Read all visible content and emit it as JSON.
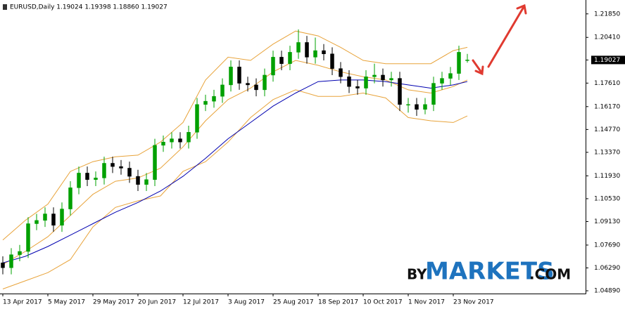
{
  "chart_data": {
    "type": "candlestick",
    "title": "EURUSD,Daily  1.19024 1.19398 1.18860 1.19027",
    "x": [
      0,
      3,
      6,
      9,
      12,
      15,
      18,
      21,
      24,
      27,
      30,
      33,
      36,
      39,
      42,
      45,
      48,
      51,
      54,
      57,
      60,
      63,
      66,
      69,
      72,
      75,
      78,
      81,
      84,
      87,
      90,
      93,
      96,
      99,
      102,
      105,
      108,
      111,
      114,
      117,
      120,
      123,
      126,
      129,
      132,
      135,
      138,
      141,
      144,
      147,
      150,
      153,
      156,
      159,
      162,
      165
    ],
    "open": [
      1.066,
      1.063,
      1.071,
      1.073,
      1.09,
      1.092,
      1.096,
      1.089,
      1.099,
      1.112,
      1.121,
      1.117,
      1.118,
      1.127,
      1.125,
      1.124,
      1.119,
      1.114,
      1.117,
      1.138,
      1.14,
      1.142,
      1.14,
      1.146,
      1.163,
      1.165,
      1.168,
      1.175,
      1.186,
      1.176,
      1.175,
      1.172,
      1.181,
      1.192,
      1.188,
      1.195,
      1.201,
      1.192,
      1.196,
      1.194,
      1.185,
      1.18,
      1.174,
      1.173,
      1.18,
      1.181,
      1.178,
      1.179,
      1.163,
      1.163,
      1.16,
      1.163,
      1.176,
      1.179,
      1.182,
      1.19024
    ],
    "high": [
      1.07,
      1.075,
      1.077,
      1.094,
      1.096,
      1.1,
      1.1,
      1.103,
      1.116,
      1.125,
      1.125,
      1.122,
      1.131,
      1.131,
      1.129,
      1.128,
      1.123,
      1.121,
      1.142,
      1.144,
      1.146,
      1.146,
      1.15,
      1.167,
      1.169,
      1.172,
      1.179,
      1.19,
      1.19,
      1.18,
      1.179,
      1.185,
      1.196,
      1.196,
      1.199,
      1.209,
      1.205,
      1.204,
      1.2,
      1.198,
      1.189,
      1.184,
      1.178,
      1.184,
      1.188,
      1.185,
      1.183,
      1.183,
      1.167,
      1.167,
      1.167,
      1.18,
      1.183,
      1.186,
      1.199,
      1.19398
    ],
    "low": [
      1.059,
      1.059,
      1.067,
      1.069,
      1.086,
      1.088,
      1.085,
      1.085,
      1.095,
      1.108,
      1.113,
      1.113,
      1.114,
      1.121,
      1.12,
      1.115,
      1.11,
      1.11,
      1.113,
      1.134,
      1.136,
      1.136,
      1.136,
      1.142,
      1.159,
      1.161,
      1.164,
      1.171,
      1.172,
      1.171,
      1.168,
      1.168,
      1.177,
      1.184,
      1.184,
      1.191,
      1.188,
      1.188,
      1.19,
      1.181,
      1.176,
      1.17,
      1.169,
      1.169,
      1.176,
      1.174,
      1.174,
      1.159,
      1.158,
      1.156,
      1.157,
      1.159,
      1.172,
      1.175,
      1.178,
      1.1886
    ],
    "close": [
      1.063,
      1.071,
      1.073,
      1.09,
      1.092,
      1.096,
      1.089,
      1.099,
      1.112,
      1.121,
      1.117,
      1.118,
      1.127,
      1.125,
      1.124,
      1.119,
      1.114,
      1.117,
      1.138,
      1.14,
      1.142,
      1.14,
      1.146,
      1.163,
      1.165,
      1.168,
      1.175,
      1.186,
      1.176,
      1.175,
      1.172,
      1.181,
      1.192,
      1.188,
      1.195,
      1.201,
      1.192,
      1.196,
      1.194,
      1.185,
      1.18,
      1.174,
      1.173,
      1.18,
      1.181,
      1.178,
      1.179,
      1.163,
      1.163,
      1.16,
      1.163,
      1.176,
      1.179,
      1.182,
      1.195,
      1.19027
    ],
    "up_color": "#00a000",
    "down_color": "#000000",
    "indicator_x": [
      0,
      8,
      16,
      24,
      32,
      40,
      48,
      56,
      64,
      72,
      80,
      88,
      96,
      104,
      112,
      120,
      128,
      136,
      144,
      152,
      160,
      165
    ],
    "indicators": [
      {
        "color": "#e8a33a",
        "values": [
          1.08,
          1.092,
          1.102,
          1.122,
          1.128,
          1.131,
          1.132,
          1.14,
          1.152,
          1.178,
          1.192,
          1.19,
          1.2,
          1.208,
          1.205,
          1.198,
          1.19,
          1.188,
          1.188,
          1.188,
          1.196,
          1.198
        ]
      },
      {
        "color": "#e8a33a",
        "values": [
          1.065,
          1.073,
          1.082,
          1.095,
          1.108,
          1.116,
          1.118,
          1.124,
          1.137,
          1.153,
          1.166,
          1.173,
          1.183,
          1.19,
          1.187,
          1.183,
          1.18,
          1.178,
          1.172,
          1.17,
          1.174,
          1.178
        ]
      },
      {
        "color": "#e8a33a",
        "values": [
          1.05,
          1.055,
          1.06,
          1.068,
          1.088,
          1.1,
          1.104,
          1.107,
          1.122,
          1.128,
          1.14,
          1.155,
          1.166,
          1.172,
          1.168,
          1.168,
          1.17,
          1.167,
          1.155,
          1.153,
          1.152,
          1.156
        ]
      },
      {
        "color": "#0000b0",
        "values": [
          1.066,
          1.07,
          1.076,
          1.083,
          1.09,
          1.097,
          1.103,
          1.11,
          1.119,
          1.13,
          1.142,
          1.152,
          1.162,
          1.17,
          1.177,
          1.178,
          1.178,
          1.177,
          1.175,
          1.173,
          1.175,
          1.177
        ]
      }
    ],
    "xlim": [
      -1,
      207
    ],
    "ylim": [
      1.0472,
      1.227
    ],
    "xticks": [
      {
        "value": 0,
        "label": "13 Apr 2017"
      },
      {
        "value": 16,
        "label": "5 May 2017"
      },
      {
        "value": 32,
        "label": "29 May 2017"
      },
      {
        "value": 48,
        "label": "20 Jun 2017"
      },
      {
        "value": 64,
        "label": "12 Jul 2017"
      },
      {
        "value": 80,
        "label": "3 Aug 2017"
      },
      {
        "value": 96,
        "label": "25 Aug 2017"
      },
      {
        "value": 112,
        "label": "18 Sep 2017"
      },
      {
        "value": 128,
        "label": "10 Oct 2017"
      },
      {
        "value": 144,
        "label": "1 Nov 2017"
      },
      {
        "value": 160,
        "label": "23 Nov 2017"
      }
    ],
    "yticks": [
      {
        "value": 1.2185,
        "label": "1.21850"
      },
      {
        "value": 1.2041,
        "label": "1.20410"
      },
      {
        "value": 1.1761,
        "label": "1.17610"
      },
      {
        "value": 1.1617,
        "label": "1.16170"
      },
      {
        "value": 1.1477,
        "label": "1.14770"
      },
      {
        "value": 1.1337,
        "label": "1.13370"
      },
      {
        "value": 1.1193,
        "label": "1.11930"
      },
      {
        "value": 1.1053,
        "label": "1.10530"
      },
      {
        "value": 1.0913,
        "label": "1.09130"
      },
      {
        "value": 1.0769,
        "label": "1.07690"
      },
      {
        "value": 1.0629,
        "label": "1.06290"
      },
      {
        "value": 1.0489,
        "label": "1.04890"
      }
    ],
    "current_price": {
      "value": 1.19027,
      "label": "1.19027"
    },
    "watermark": {
      "prefix": "BY",
      "main": "MARKETS",
      "suffix": ".COM"
    }
  }
}
